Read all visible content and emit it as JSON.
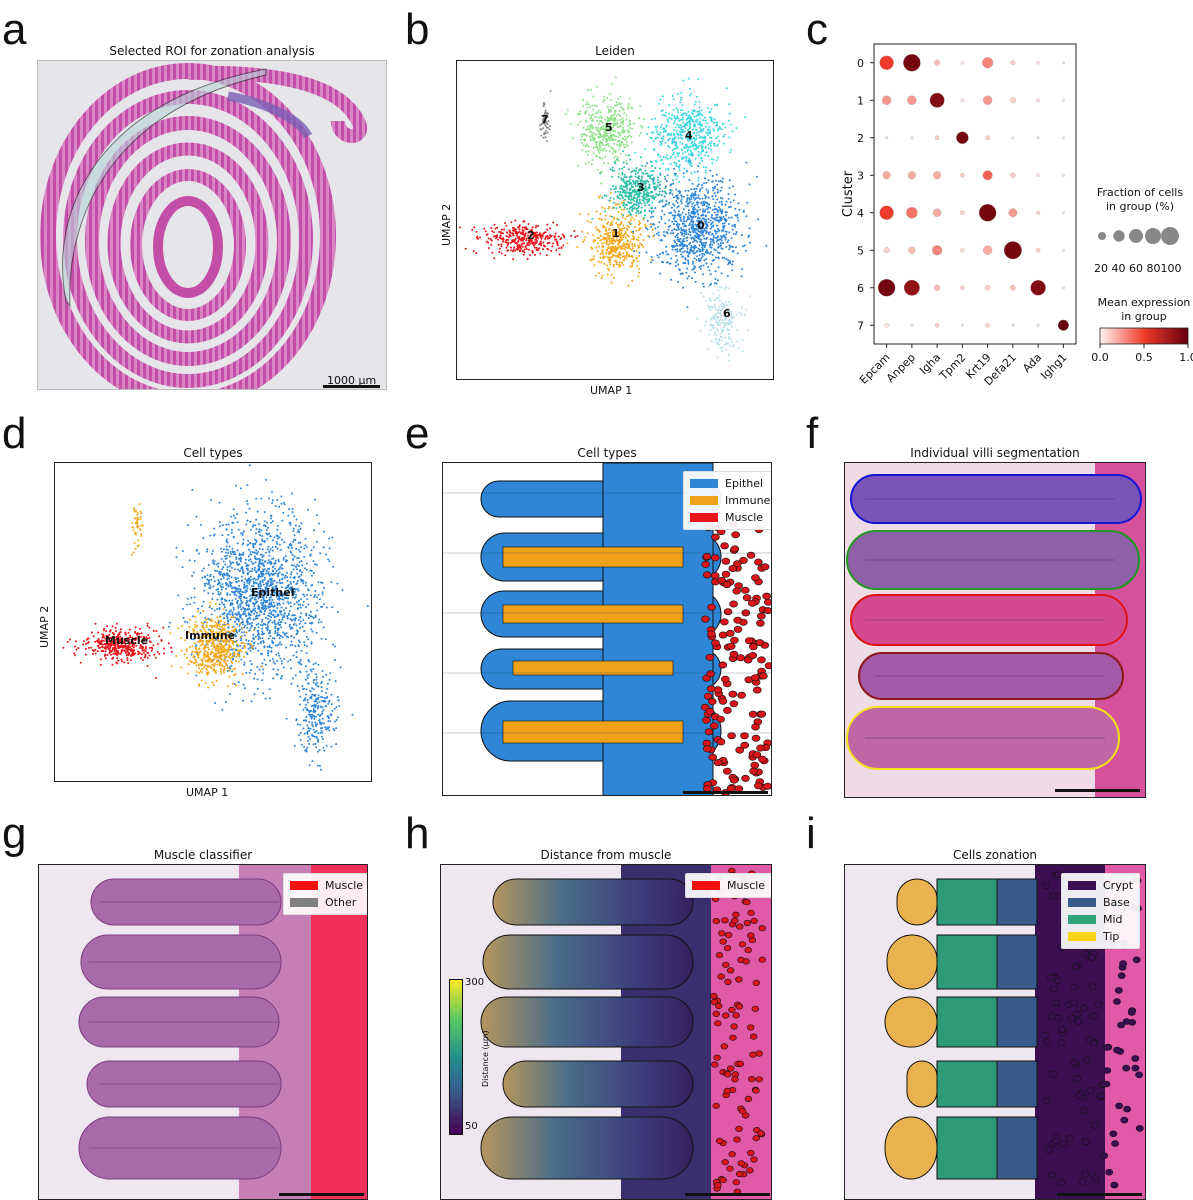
{
  "panels": {
    "a": {
      "letter": "a",
      "title": "Selected ROI for zonation analysis",
      "scale": "1000 µm"
    },
    "b": {
      "letter": "b",
      "title": "Leiden",
      "xlabel": "UMAP 1",
      "ylabel": "UMAP 2",
      "clusters": [
        "0",
        "1",
        "2",
        "3",
        "4",
        "5",
        "6",
        "7"
      ]
    },
    "c": {
      "letter": "c"
    },
    "d": {
      "letter": "d",
      "title": "Cell types",
      "xlabel": "UMAP 1",
      "ylabel": "UMAP 2",
      "labels": {
        "epithel": "Epithel",
        "immune": "Immune",
        "muscle": "Muscle"
      }
    },
    "e": {
      "letter": "e",
      "title": "Cell types",
      "legend": [
        {
          "label": "Epithel",
          "color": "#2f86d6"
        },
        {
          "label": "Immune",
          "color": "#f0a21a"
        },
        {
          "label": "Muscle",
          "color": "#e8141a"
        }
      ]
    },
    "f": {
      "letter": "f",
      "title": "Individual villi segmentation"
    },
    "g": {
      "letter": "g",
      "title": "Muscle classifier",
      "legend": [
        {
          "label": "Muscle",
          "color": "#f20f0f"
        },
        {
          "label": "Other",
          "color": "#7f7f7f"
        }
      ]
    },
    "h": {
      "letter": "h",
      "title": "Distance from muscle",
      "legend": [
        {
          "label": "Muscle",
          "color": "#f20f0f"
        }
      ],
      "colorbar": {
        "label": "Distance (µm)",
        "ticks": [
          "300",
          "50"
        ]
      }
    },
    "i": {
      "letter": "i",
      "title": "Cells zonation",
      "legend": [
        {
          "label": "Crypt",
          "color": "#3b0f52"
        },
        {
          "label": "Base",
          "color": "#3a5c8c"
        },
        {
          "label": "Mid",
          "color": "#2fa37a"
        },
        {
          "label": "Tip",
          "color": "#f5d41a"
        }
      ]
    }
  },
  "chart_data": {
    "type": "dotplot",
    "ylabel": "Cluster",
    "genes": [
      "Epcam",
      "Anpep",
      "Igha",
      "Tpm2",
      "Krt19",
      "Defa21",
      "Ada",
      "Ighg1"
    ],
    "clusters": [
      "0",
      "1",
      "2",
      "3",
      "4",
      "5",
      "6",
      "7"
    ],
    "fraction": [
      [
        60,
        90,
        10,
        3,
        35,
        6,
        3,
        2
      ],
      [
        25,
        25,
        65,
        3,
        25,
        10,
        3,
        2
      ],
      [
        2,
        2,
        5,
        45,
        5,
        2,
        2,
        2
      ],
      [
        18,
        18,
        18,
        5,
        28,
        8,
        3,
        2
      ],
      [
        60,
        38,
        20,
        5,
        90,
        22,
        4,
        2
      ],
      [
        10,
        15,
        30,
        5,
        25,
        95,
        5,
        2
      ],
      [
        90,
        75,
        10,
        5,
        8,
        8,
        70,
        2
      ],
      [
        5,
        3,
        5,
        2,
        5,
        2,
        2,
        35
      ]
    ],
    "expression": [
      [
        0.5,
        0.95,
        0.15,
        0.05,
        0.3,
        0.1,
        0.05,
        0.05
      ],
      [
        0.25,
        0.25,
        0.9,
        0.05,
        0.25,
        0.1,
        0.05,
        0.05
      ],
      [
        0.05,
        0.05,
        0.1,
        0.95,
        0.1,
        0.05,
        0.05,
        0.05
      ],
      [
        0.2,
        0.2,
        0.2,
        0.1,
        0.4,
        0.1,
        0.05,
        0.05
      ],
      [
        0.5,
        0.35,
        0.2,
        0.1,
        0.95,
        0.25,
        0.1,
        0.05
      ],
      [
        0.1,
        0.15,
        0.3,
        0.05,
        0.2,
        0.95,
        0.1,
        0.05
      ],
      [
        0.95,
        0.85,
        0.15,
        0.1,
        0.1,
        0.15,
        0.9,
        0.05
      ],
      [
        0.05,
        0.05,
        0.1,
        0.05,
        0.1,
        0.05,
        0.05,
        1.0
      ]
    ],
    "size_legend": {
      "title_line1": "Fraction of cells",
      "title_line2": "in group (%)",
      "values": [
        "20",
        "40",
        "60",
        "80",
        "100"
      ],
      "label": "20 40 60 80100"
    },
    "color_legend": {
      "title_line1": "Mean expression",
      "title_line2": "in group",
      "ticks": [
        "0.0",
        "0.5",
        "1.0"
      ],
      "range": [
        0,
        1
      ]
    }
  }
}
